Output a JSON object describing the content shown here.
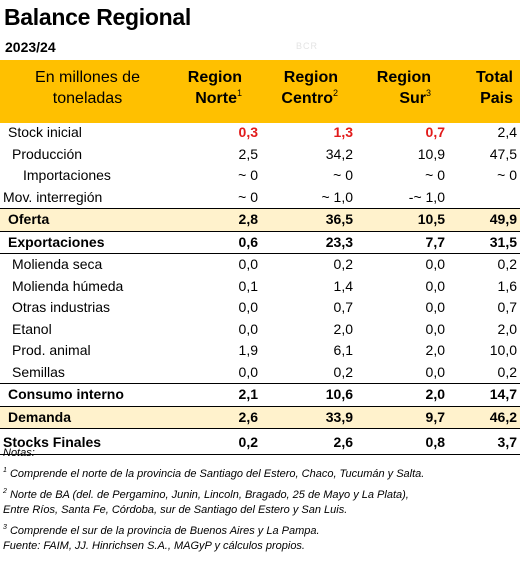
{
  "title": "Balance Regional",
  "subtitle": "2023/24",
  "watermark": "BCR",
  "header": {
    "desc_line1": "En millones de",
    "desc_line2": "toneladas",
    "cols": [
      {
        "line1": "Region",
        "line2": "Norte",
        "sup": "1"
      },
      {
        "line1": "Region",
        "line2": "Centro",
        "sup": "2"
      },
      {
        "line1": "Region",
        "line2": "Sur",
        "sup": "3"
      },
      {
        "line1": "Total",
        "line2": "Pais",
        "sup": ""
      }
    ]
  },
  "rows": [
    {
      "label": "Stock inicial",
      "values": [
        "0,3",
        "1,3",
        "0,7",
        "2,4"
      ]
    },
    {
      "label": "Producción",
      "values": [
        "2,5",
        "34,2",
        "10,9",
        "47,5"
      ]
    },
    {
      "label": "Importaciones",
      "values": [
        "~ 0",
        "~ 0",
        "~ 0",
        "~ 0"
      ]
    },
    {
      "label": "Mov. interregión",
      "values": [
        "~ 0",
        "~ 1,0",
        "-~ 1,0",
        ""
      ]
    },
    {
      "label": "Oferta",
      "values": [
        "2,8",
        "36,5",
        "10,5",
        "49,9"
      ]
    },
    {
      "label": "Exportaciones",
      "values": [
        "0,6",
        "23,3",
        "7,7",
        "31,5"
      ]
    },
    {
      "label": "Molienda seca",
      "values": [
        "0,0",
        "0,2",
        "0,0",
        "0,2"
      ]
    },
    {
      "label": "Molienda húmeda",
      "values": [
        "0,1",
        "1,4",
        "0,0",
        "1,6"
      ]
    },
    {
      "label": "Otras industrias",
      "values": [
        "0,0",
        "0,7",
        "0,0",
        "0,7"
      ]
    },
    {
      "label": "Etanol",
      "values": [
        "0,0",
        "2,0",
        "0,0",
        "2,0"
      ]
    },
    {
      "label": "Prod. animal",
      "values": [
        "1,9",
        "6,1",
        "2,0",
        "10,0"
      ]
    },
    {
      "label": "Semillas",
      "values": [
        "0,0",
        "0,2",
        "0,0",
        "0,2"
      ]
    },
    {
      "label": "Consumo interno",
      "values": [
        "2,1",
        "10,6",
        "2,0",
        "14,7"
      ]
    },
    {
      "label": "Demanda",
      "values": [
        "2,6",
        "33,9",
        "9,7",
        "46,2"
      ]
    },
    {
      "label": "Stocks Finales",
      "values": [
        "0,2",
        "2,6",
        "0,8",
        "3,7"
      ]
    }
  ],
  "notes": {
    "heading": "Notas:",
    "n1_sup": "1",
    "n1": "Comprende el norte de la provincia de Santiago del Estero, Chaco, Tucumán y Salta.",
    "n2_sup": "2",
    "n2a": "Norte de BA (del. de Pergamino, Junin, Lincoln, Bragado, 25 de Mayo y La Plata),",
    "n2b": "Entre Ríos, Santa Fe, Córdoba, sur de Santiago del Estero y San Luis.",
    "n3_sup": "3",
    "n3": "Comprende el sur de la provincia de Buenos Aires y La Pampa.",
    "source": "Fuente: FAIM, JJ. Hinrichsen S.A., MAGyP y cálculos propios."
  },
  "colors": {
    "header_bg": "#ffc000",
    "highlight_bg": "#fff2cc",
    "stock_red": "#e21b1b"
  }
}
